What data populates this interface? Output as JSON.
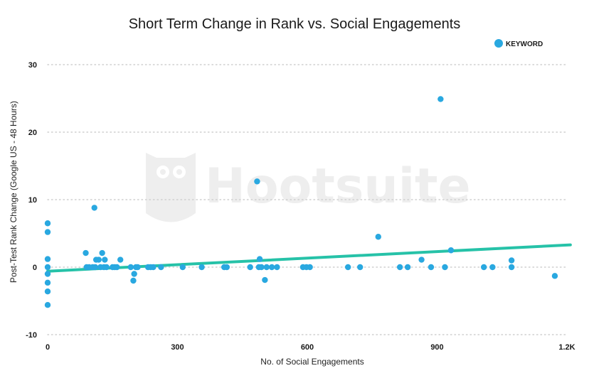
{
  "chart_data": {
    "type": "scatter",
    "title": "Short Term Change in Rank vs. Social Engagements",
    "xlabel": "No. of Social Engagements",
    "ylabel": "Post-Test Rank Change (Google US - 48 Hours)",
    "xlim": [
      0,
      1200
    ],
    "ylim": [
      -10,
      32
    ],
    "x_ticks": [
      {
        "value": 0,
        "label": "0"
      },
      {
        "value": 300,
        "label": "300"
      },
      {
        "value": 600,
        "label": "600"
      },
      {
        "value": 900,
        "label": "900"
      },
      {
        "value": 1200,
        "label": "1.2K"
      }
    ],
    "y_ticks": [
      {
        "value": -10,
        "label": "-10"
      },
      {
        "value": 0,
        "label": "0"
      },
      {
        "value": 10,
        "label": "10"
      },
      {
        "value": 20,
        "label": "20"
      },
      {
        "value": 30,
        "label": "30"
      }
    ],
    "grid": "horizontal dotted",
    "legend": {
      "position": "top-right",
      "entries": [
        "KEYWORD"
      ]
    },
    "watermark": "Hootsuite",
    "colors": {
      "points": "#29a8e0",
      "trendline": "#26c2a8",
      "grid": "#cfcfcf"
    },
    "series": [
      {
        "name": "KEYWORD",
        "points": [
          [
            0,
            6.5
          ],
          [
            0,
            5.2
          ],
          [
            0,
            1.2
          ],
          [
            0,
            0
          ],
          [
            0,
            -1
          ],
          [
            0,
            -2.3
          ],
          [
            0,
            -3.6
          ],
          [
            0,
            -5.6
          ],
          [
            88,
            2.1
          ],
          [
            90,
            0
          ],
          [
            96,
            0
          ],
          [
            104,
            0
          ],
          [
            108,
            8.8
          ],
          [
            110,
            0
          ],
          [
            112,
            1.1
          ],
          [
            118,
            1.1
          ],
          [
            122,
            0
          ],
          [
            126,
            2.1
          ],
          [
            130,
            0
          ],
          [
            132,
            1.1
          ],
          [
            136,
            0
          ],
          [
            150,
            0
          ],
          [
            155,
            0
          ],
          [
            160,
            0
          ],
          [
            168,
            1.1
          ],
          [
            192,
            0
          ],
          [
            198,
            -2
          ],
          [
            200,
            -1
          ],
          [
            204,
            0
          ],
          [
            208,
            0
          ],
          [
            232,
            0
          ],
          [
            238,
            0
          ],
          [
            244,
            0
          ],
          [
            262,
            0
          ],
          [
            312,
            0
          ],
          [
            356,
            0
          ],
          [
            408,
            0
          ],
          [
            414,
            0
          ],
          [
            468,
            0
          ],
          [
            484,
            12.7
          ],
          [
            488,
            0
          ],
          [
            490,
            1.2
          ],
          [
            494,
            0
          ],
          [
            502,
            -1.9
          ],
          [
            506,
            0
          ],
          [
            518,
            0
          ],
          [
            530,
            0
          ],
          [
            590,
            0
          ],
          [
            598,
            0
          ],
          [
            606,
            0
          ],
          [
            694,
            0
          ],
          [
            722,
            0
          ],
          [
            764,
            4.5
          ],
          [
            814,
            0
          ],
          [
            832,
            0
          ],
          [
            864,
            1.1
          ],
          [
            886,
            0
          ],
          [
            908,
            24.9
          ],
          [
            918,
            0
          ],
          [
            932,
            2.5
          ],
          [
            1008,
            0
          ],
          [
            1028,
            0
          ],
          [
            1072,
            0
          ],
          [
            1072,
            1
          ],
          [
            1172,
            -1.3
          ]
        ]
      }
    ],
    "trendline": {
      "start": [
        0,
        -0.6
      ],
      "end": [
        1208,
        3.3
      ]
    }
  }
}
